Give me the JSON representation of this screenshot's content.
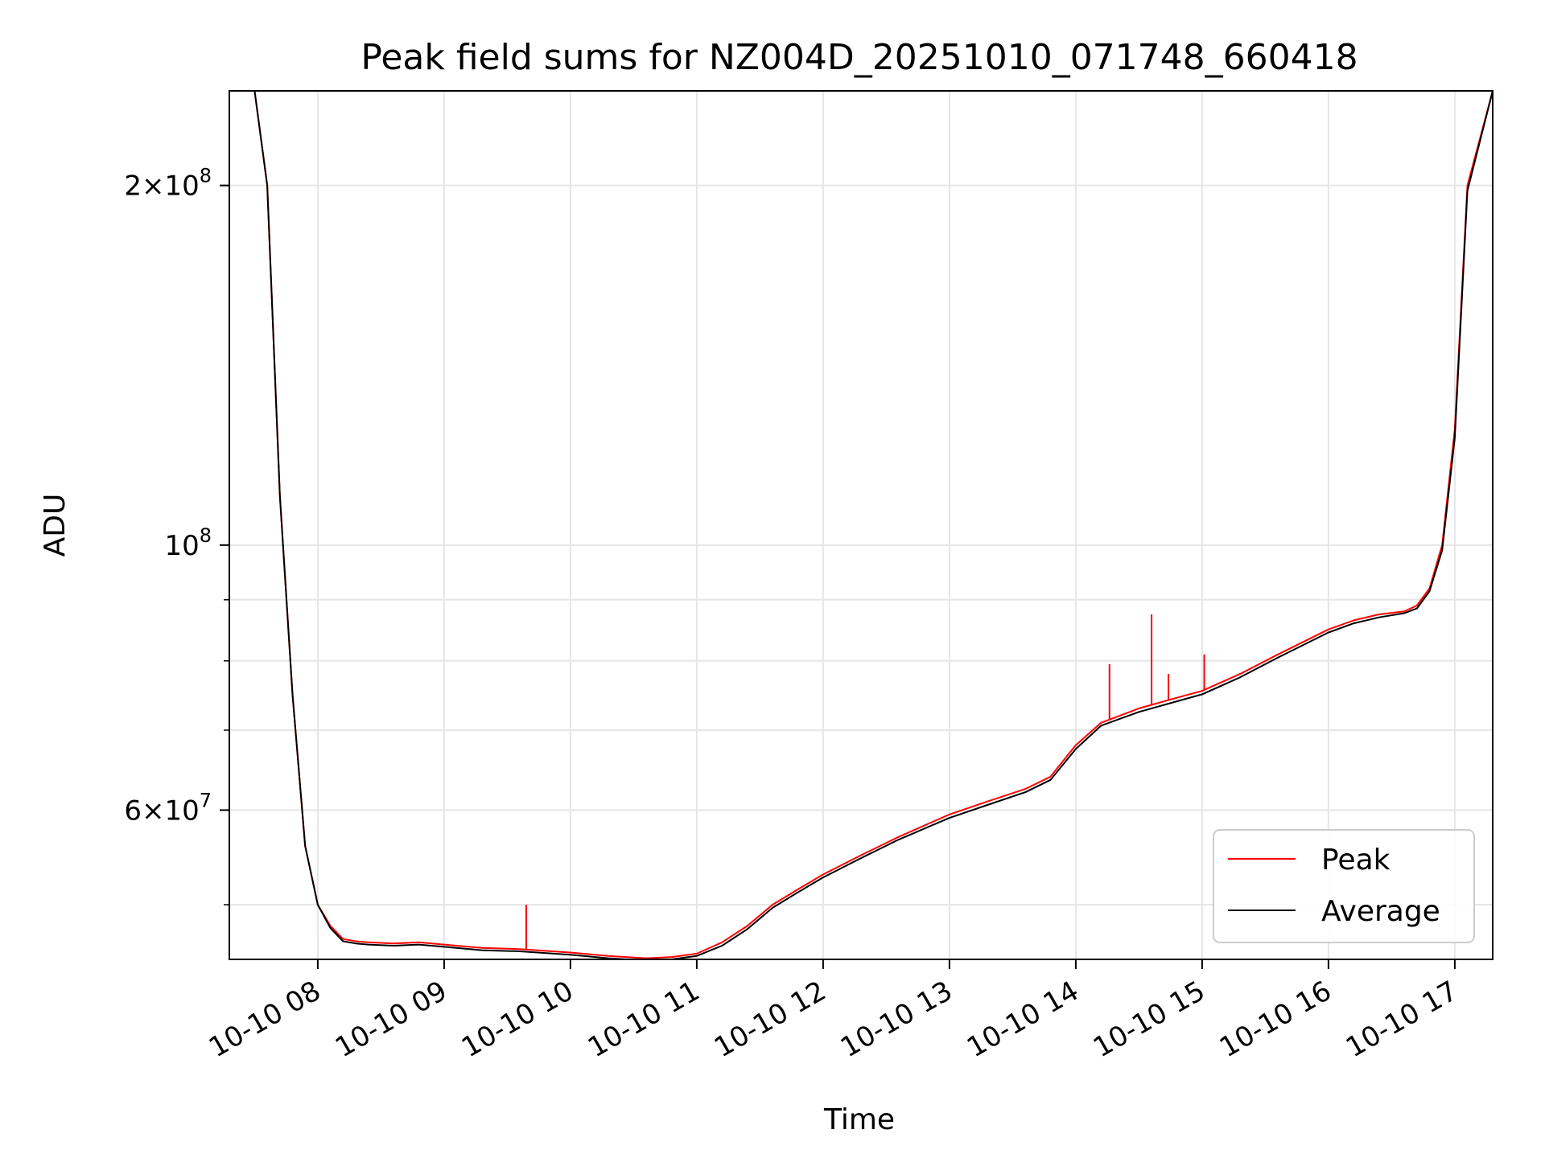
{
  "chart_data": {
    "type": "line",
    "title": "Peak field sums for NZ004D_20251010_071748_660418",
    "xlabel": "Time",
    "ylabel": "ADU",
    "yscale": "log",
    "ylim": [
      45000000,
      240000000
    ],
    "xlim": [
      "2025-10-10 07:18",
      "2025-10-10 17:18"
    ],
    "grid": true,
    "legend_position": "bottom-right",
    "x_ticks": [
      {
        "value": "2025-10-10 08:00",
        "label": "10-10 08"
      },
      {
        "value": "2025-10-10 09:00",
        "label": "10-10 09"
      },
      {
        "value": "2025-10-10 10:00",
        "label": "10-10 10"
      },
      {
        "value": "2025-10-10 11:00",
        "label": "10-10 11"
      },
      {
        "value": "2025-10-10 12:00",
        "label": "10-10 12"
      },
      {
        "value": "2025-10-10 13:00",
        "label": "10-10 13"
      },
      {
        "value": "2025-10-10 14:00",
        "label": "10-10 14"
      },
      {
        "value": "2025-10-10 15:00",
        "label": "10-10 15"
      },
      {
        "value": "2025-10-10 16:00",
        "label": "10-10 16"
      },
      {
        "value": "2025-10-10 17:00",
        "label": "10-10 17"
      }
    ],
    "y_ticks_major": [
      {
        "value": 200000000,
        "mantissa": "2",
        "exponent": "8"
      },
      {
        "value": 100000000,
        "mantissa": "",
        "exponent": "8"
      },
      {
        "value": 60000000,
        "mantissa": "6",
        "exponent": "7"
      }
    ],
    "y_ticks_minor": [
      50000000,
      70000000,
      80000000,
      90000000
    ],
    "x": [
      "2025-10-10 07:18",
      "2025-10-10 07:30",
      "2025-10-10 07:36",
      "2025-10-10 07:42",
      "2025-10-10 07:48",
      "2025-10-10 07:54",
      "2025-10-10 08:00",
      "2025-10-10 08:06",
      "2025-10-10 08:12",
      "2025-10-10 08:18",
      "2025-10-10 08:24",
      "2025-10-10 08:36",
      "2025-10-10 08:48",
      "2025-10-10 09:00",
      "2025-10-10 09:18",
      "2025-10-10 09:36",
      "2025-10-10 10:00",
      "2025-10-10 10:18",
      "2025-10-10 10:36",
      "2025-10-10 10:48",
      "2025-10-10 11:00",
      "2025-10-10 11:12",
      "2025-10-10 11:24",
      "2025-10-10 11:36",
      "2025-10-10 11:48",
      "2025-10-10 12:00",
      "2025-10-10 12:18",
      "2025-10-10 12:36",
      "2025-10-10 13:00",
      "2025-10-10 13:18",
      "2025-10-10 13:36",
      "2025-10-10 13:48",
      "2025-10-10 14:00",
      "2025-10-10 14:12",
      "2025-10-10 14:30",
      "2025-10-10 14:48",
      "2025-10-10 15:00",
      "2025-10-10 15:18",
      "2025-10-10 15:36",
      "2025-10-10 16:00",
      "2025-10-10 16:12",
      "2025-10-10 16:24",
      "2025-10-10 16:36",
      "2025-10-10 16:42",
      "2025-10-10 16:48",
      "2025-10-10 16:54",
      "2025-10-10 17:00",
      "2025-10-10 17:06",
      "2025-10-10 17:18"
    ],
    "series": [
      {
        "name": "Peak",
        "color": "#ff0000",
        "values": [
          240000000,
          240000000,
          200000000,
          110000000,
          75000000,
          56000000,
          50000000,
          48000000,
          46800000,
          46600000,
          46500000,
          46400000,
          46500000,
          46300000,
          46000000,
          45900000,
          45600000,
          45300000,
          45100000,
          45200000,
          45500000,
          46500000,
          48000000,
          50000000,
          51500000,
          53000000,
          55000000,
          57000000,
          59500000,
          61000000,
          62500000,
          64000000,
          68000000,
          71000000,
          73000000,
          74500000,
          75500000,
          78000000,
          81000000,
          85000000,
          86500000,
          87500000,
          88000000,
          89000000,
          92000000,
          100000000,
          125000000,
          200000000,
          240000000
        ],
        "spikes": [
          {
            "x": "2025-10-10 09:39",
            "value": 50000000
          },
          {
            "x": "2025-10-10 14:16",
            "value": 79500000
          },
          {
            "x": "2025-10-10 14:36",
            "value": 87500000
          },
          {
            "x": "2025-10-10 14:44",
            "value": 78000000
          },
          {
            "x": "2025-10-10 15:01",
            "value": 81000000
          }
        ]
      },
      {
        "name": "Average",
        "color": "#000000",
        "values": [
          240000000,
          240000000,
          200000000,
          110000000,
          75000000,
          56000000,
          50000000,
          47800000,
          46600000,
          46400000,
          46300000,
          46200000,
          46300000,
          46100000,
          45800000,
          45700000,
          45400000,
          45100000,
          44900000,
          45000000,
          45300000,
          46200000,
          47700000,
          49700000,
          51200000,
          52700000,
          54700000,
          56700000,
          59100000,
          60600000,
          62100000,
          63600000,
          67500000,
          70600000,
          72500000,
          74000000,
          75000000,
          77500000,
          80500000,
          84500000,
          86000000,
          87000000,
          87700000,
          88500000,
          91500000,
          99000000,
          123000000,
          198000000,
          240000000
        ]
      }
    ]
  }
}
